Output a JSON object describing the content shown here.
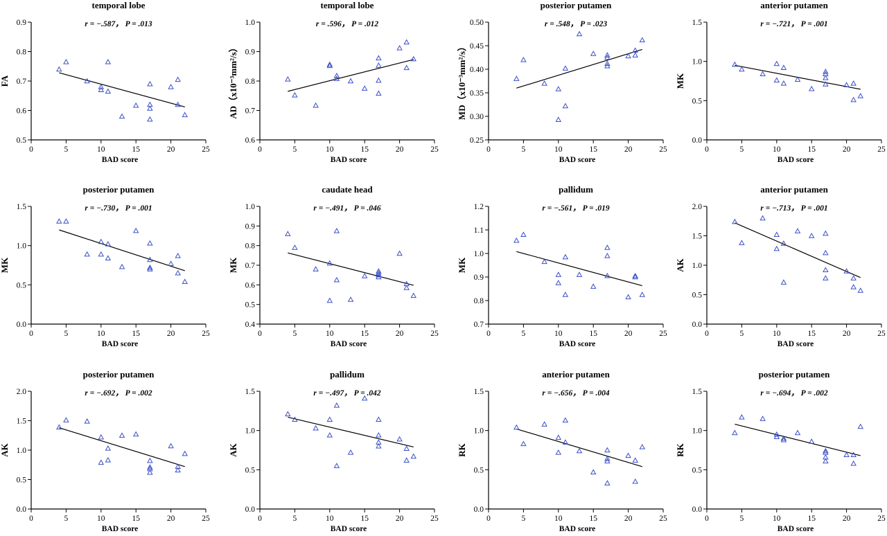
{
  "chart_data": [
    {
      "type": "scatter",
      "title": "temporal lobe",
      "annotation": {
        "r": "r = −.587，",
        "p": "P = .013"
      },
      "xlabel": "BAD score",
      "ylabel": "FA",
      "xlim": [
        0,
        25
      ],
      "ylim": [
        0.5,
        0.9
      ],
      "xticks": [
        "0",
        "5",
        "10",
        "15",
        "20",
        "25"
      ],
      "yticks": [
        "0.5",
        "0.6",
        "0.7",
        "0.8",
        "0.9"
      ],
      "points": [
        [
          4,
          0.74
        ],
        [
          5,
          0.765
        ],
        [
          8,
          0.7
        ],
        [
          10,
          0.68
        ],
        [
          10,
          0.67
        ],
        [
          11,
          0.765
        ],
        [
          11,
          0.665
        ],
        [
          13,
          0.58
        ],
        [
          15,
          0.617
        ],
        [
          17,
          0.69
        ],
        [
          17,
          0.62
        ],
        [
          17,
          0.607
        ],
        [
          17,
          0.57
        ],
        [
          20,
          0.68
        ],
        [
          21,
          0.705
        ],
        [
          21,
          0.62
        ],
        [
          22,
          0.585
        ]
      ],
      "fit": [
        [
          4,
          0.728
        ],
        [
          22,
          0.612
        ]
      ]
    },
    {
      "type": "scatter",
      "title": "temporal lobe",
      "annotation": {
        "r": "r = .596，",
        "p": "P = .012"
      },
      "xlabel": "BAD score",
      "ylabel": "AD（x10⁻³mm²/s）",
      "xlim": [
        0,
        25
      ],
      "ylim": [
        0.6,
        1.0
      ],
      "xticks": [
        "0",
        "5",
        "10",
        "15",
        "20",
        "25"
      ],
      "yticks": [
        "0.6",
        "0.7",
        "0.8",
        "0.9",
        "1.0"
      ],
      "points": [
        [
          4,
          0.806
        ],
        [
          5,
          0.752
        ],
        [
          8,
          0.717
        ],
        [
          10,
          0.856
        ],
        [
          10,
          0.852
        ],
        [
          11,
          0.818
        ],
        [
          11,
          0.808
        ],
        [
          13,
          0.8
        ],
        [
          15,
          0.775
        ],
        [
          17,
          0.878
        ],
        [
          17,
          0.853
        ],
        [
          17,
          0.802
        ],
        [
          17,
          0.758
        ],
        [
          20,
          0.912
        ],
        [
          21,
          0.932
        ],
        [
          21,
          0.845
        ],
        [
          22,
          0.875
        ]
      ],
      "fit": [
        [
          4,
          0.765
        ],
        [
          22,
          0.873
        ]
      ]
    },
    {
      "type": "scatter",
      "title": "posterior putamen",
      "annotation": {
        "r": "r = .548，",
        "p": "P = .023"
      },
      "xlabel": "BAD score",
      "ylabel": "MD（x10⁻³mm²/s）",
      "xlim": [
        0,
        25
      ],
      "ylim": [
        0.25,
        0.5
      ],
      "xticks": [
        "0",
        "5",
        "10",
        "15",
        "20",
        "25"
      ],
      "yticks": [
        "0.25",
        "0.30",
        "0.35",
        "0.40",
        "0.45",
        "0.50"
      ],
      "points": [
        [
          4,
          0.38
        ],
        [
          5,
          0.42
        ],
        [
          8,
          0.37
        ],
        [
          10,
          0.358
        ],
        [
          10,
          0.293
        ],
        [
          11,
          0.402
        ],
        [
          11,
          0.322
        ],
        [
          13,
          0.475
        ],
        [
          15,
          0.433
        ],
        [
          17,
          0.43
        ],
        [
          17,
          0.425
        ],
        [
          17,
          0.412
        ],
        [
          17,
          0.407
        ],
        [
          20,
          0.428
        ],
        [
          21,
          0.44
        ],
        [
          21,
          0.43
        ],
        [
          22,
          0.462
        ]
      ],
      "fit": [
        [
          4,
          0.36
        ],
        [
          22,
          0.442
        ]
      ]
    },
    {
      "type": "scatter",
      "title": "anterior putamen",
      "annotation": {
        "r": "r = −.721，",
        "p": "P = .001"
      },
      "xlabel": "BAD score",
      "ylabel": "MK",
      "xlim": [
        0,
        25
      ],
      "ylim": [
        0.0,
        1.5
      ],
      "xticks": [
        "0",
        "5",
        "10",
        "15",
        "20",
        "25"
      ],
      "yticks": [
        "0.0",
        "0.5",
        "1.0",
        "1.5"
      ],
      "points": [
        [
          4,
          0.96
        ],
        [
          5,
          0.9
        ],
        [
          8,
          0.84
        ],
        [
          10,
          0.97
        ],
        [
          10,
          0.76
        ],
        [
          11,
          0.92
        ],
        [
          11,
          0.72
        ],
        [
          13,
          0.77
        ],
        [
          15,
          0.65
        ],
        [
          17,
          0.87
        ],
        [
          17,
          0.84
        ],
        [
          17,
          0.79
        ],
        [
          17,
          0.71
        ],
        [
          20,
          0.7
        ],
        [
          21,
          0.72
        ],
        [
          21,
          0.51
        ],
        [
          22,
          0.56
        ]
      ],
      "fit": [
        [
          4,
          0.95
        ],
        [
          22,
          0.645
        ]
      ]
    },
    {
      "type": "scatter",
      "title": "posterior putamen",
      "annotation": {
        "r": "r = −.730，",
        "p": "P = .001"
      },
      "xlabel": "BAD score",
      "ylabel": "MK",
      "xlim": [
        0,
        25
      ],
      "ylim": [
        0.0,
        1.5
      ],
      "xticks": [
        "0",
        "5",
        "10",
        "15",
        "20",
        "25"
      ],
      "yticks": [
        "0.0",
        "0.5",
        "1.0",
        "1.5"
      ],
      "points": [
        [
          4,
          1.31
        ],
        [
          5,
          1.31
        ],
        [
          8,
          0.89
        ],
        [
          10,
          1.05
        ],
        [
          10,
          0.89
        ],
        [
          11,
          1.02
        ],
        [
          11,
          0.84
        ],
        [
          13,
          0.73
        ],
        [
          15,
          1.19
        ],
        [
          17,
          1.03
        ],
        [
          17,
          0.82
        ],
        [
          17,
          0.72
        ],
        [
          17,
          0.7
        ],
        [
          20,
          0.77
        ],
        [
          21,
          0.87
        ],
        [
          21,
          0.65
        ],
        [
          22,
          0.54
        ]
      ],
      "fit": [
        [
          4,
          1.2
        ],
        [
          22,
          0.68
        ]
      ]
    },
    {
      "type": "scatter",
      "title": "caudate head",
      "annotation": {
        "r": "r = −.491，",
        "p": "P = .046"
      },
      "xlabel": "BAD score",
      "ylabel": "MK",
      "xlim": [
        0,
        25
      ],
      "ylim": [
        0.4,
        1.0
      ],
      "xticks": [
        "0",
        "5",
        "10",
        "15",
        "20",
        "25"
      ],
      "yticks": [
        "0.4",
        "0.5",
        "0.6",
        "0.7",
        "0.8",
        "0.9",
        "1.0"
      ],
      "points": [
        [
          4,
          0.86
        ],
        [
          5,
          0.79
        ],
        [
          8,
          0.68
        ],
        [
          10,
          0.71
        ],
        [
          10,
          0.52
        ],
        [
          11,
          0.875
        ],
        [
          11,
          0.625
        ],
        [
          13,
          0.525
        ],
        [
          15,
          0.645
        ],
        [
          17,
          0.67
        ],
        [
          17,
          0.66
        ],
        [
          17,
          0.65
        ],
        [
          17,
          0.64
        ],
        [
          20,
          0.76
        ],
        [
          21,
          0.605
        ],
        [
          21,
          0.585
        ],
        [
          22,
          0.545
        ]
      ],
      "fit": [
        [
          4,
          0.763
        ],
        [
          22,
          0.598
        ]
      ]
    },
    {
      "type": "scatter",
      "title": "pallidum",
      "annotation": {
        "r": "r = −.561，",
        "p": "P = .019"
      },
      "xlabel": "BAD score",
      "ylabel": "MK",
      "xlim": [
        0,
        25
      ],
      "ylim": [
        0.7,
        1.2
      ],
      "xticks": [
        "0",
        "5",
        "10",
        "15",
        "20",
        "25"
      ],
      "yticks": [
        "0.7",
        "0.8",
        "0.9",
        "1.0",
        "1.1",
        "1.2"
      ],
      "points": [
        [
          4,
          1.055
        ],
        [
          5,
          1.08
        ],
        [
          8,
          0.965
        ],
        [
          10,
          0.91
        ],
        [
          10,
          0.875
        ],
        [
          11,
          0.985
        ],
        [
          11,
          0.825
        ],
        [
          13,
          0.91
        ],
        [
          15,
          0.86
        ],
        [
          17,
          1.025
        ],
        [
          17,
          0.99
        ],
        [
          17,
          0.905
        ],
        [
          20,
          0.815
        ],
        [
          21,
          0.905
        ],
        [
          21,
          0.9
        ],
        [
          22,
          0.825
        ]
      ],
      "fit": [
        [
          4,
          1.008
        ],
        [
          22,
          0.863
        ]
      ]
    },
    {
      "type": "scatter",
      "title": "anterior putamen",
      "annotation": {
        "r": "r = −.713，",
        "p": "P = .001"
      },
      "xlabel": "BAD score",
      "ylabel": "AK",
      "xlim": [
        0,
        25
      ],
      "ylim": [
        0.0,
        2.0
      ],
      "xticks": [
        "0",
        "5",
        "10",
        "15",
        "20",
        "25"
      ],
      "yticks": [
        "0.0",
        "0.5",
        "1.0",
        "1.5",
        "2.0"
      ],
      "points": [
        [
          4,
          1.74
        ],
        [
          5,
          1.38
        ],
        [
          8,
          1.8
        ],
        [
          10,
          1.52
        ],
        [
          10,
          1.28
        ],
        [
          11,
          1.37
        ],
        [
          11,
          0.71
        ],
        [
          13,
          1.58
        ],
        [
          15,
          1.5
        ],
        [
          17,
          1.54
        ],
        [
          17,
          1.21
        ],
        [
          17,
          0.92
        ],
        [
          17,
          0.78
        ],
        [
          20,
          0.9
        ],
        [
          21,
          0.78
        ],
        [
          21,
          0.63
        ],
        [
          22,
          0.57
        ]
      ],
      "fit": [
        [
          4,
          1.72
        ],
        [
          22,
          0.79
        ]
      ]
    },
    {
      "type": "scatter",
      "title": "posterior putamen",
      "annotation": {
        "r": "r = −.692，",
        "p": "P = .002"
      },
      "xlabel": "BAD score",
      "ylabel": "AK",
      "xlim": [
        0,
        25
      ],
      "ylim": [
        0.0,
        2.0
      ],
      "xticks": [
        "0",
        "5",
        "10",
        "15",
        "20",
        "25"
      ],
      "yticks": [
        "0.0",
        "0.5",
        "1.0",
        "1.5",
        "2.0"
      ],
      "points": [
        [
          4,
          1.39
        ],
        [
          5,
          1.51
        ],
        [
          8,
          1.49
        ],
        [
          10,
          1.22
        ],
        [
          10,
          0.79
        ],
        [
          11,
          1.03
        ],
        [
          11,
          0.83
        ],
        [
          13,
          1.25
        ],
        [
          15,
          1.27
        ],
        [
          17,
          0.82
        ],
        [
          17,
          0.71
        ],
        [
          17,
          0.68
        ],
        [
          17,
          0.62
        ],
        [
          20,
          1.07
        ],
        [
          21,
          0.72
        ],
        [
          21,
          0.66
        ],
        [
          22,
          0.94
        ]
      ],
      "fit": [
        [
          4,
          1.38
        ],
        [
          22,
          0.72
        ]
      ]
    },
    {
      "type": "scatter",
      "title": "pallidum",
      "annotation": {
        "r": "r = −.497，",
        "p": "P = .042"
      },
      "xlabel": "BAD score",
      "ylabel": "AK",
      "xlim": [
        0,
        25
      ],
      "ylim": [
        0.0,
        1.5
      ],
      "xticks": [
        "0",
        "5",
        "10",
        "15",
        "20",
        "25"
      ],
      "yticks": [
        "0.0",
        "0.5",
        "1.0",
        "1.5"
      ],
      "points": [
        [
          4,
          1.21
        ],
        [
          5,
          1.14
        ],
        [
          8,
          1.03
        ],
        [
          10,
          1.14
        ],
        [
          10,
          0.94
        ],
        [
          11,
          1.32
        ],
        [
          11,
          0.55
        ],
        [
          13,
          0.72
        ],
        [
          15,
          1.41
        ],
        [
          17,
          1.14
        ],
        [
          17,
          0.94
        ],
        [
          17,
          0.85
        ],
        [
          17,
          0.8
        ],
        [
          20,
          0.89
        ],
        [
          21,
          0.77
        ],
        [
          21,
          0.62
        ],
        [
          22,
          0.67
        ]
      ],
      "fit": [
        [
          4,
          1.17
        ],
        [
          22,
          0.79
        ]
      ]
    },
    {
      "type": "scatter",
      "title": "anterior putamen",
      "annotation": {
        "r": "r = −.656，",
        "p": "P = .004"
      },
      "xlabel": "BAD score",
      "ylabel": "RK",
      "xlim": [
        0,
        25
      ],
      "ylim": [
        0.0,
        1.5
      ],
      "xticks": [
        "0",
        "5",
        "10",
        "15",
        "20",
        "25"
      ],
      "yticks": [
        "0.0",
        "0.5",
        "1.0",
        "1.5"
      ],
      "points": [
        [
          4,
          1.04
        ],
        [
          5,
          0.83
        ],
        [
          8,
          1.08
        ],
        [
          10,
          0.91
        ],
        [
          10,
          0.72
        ],
        [
          11,
          1.13
        ],
        [
          11,
          0.85
        ],
        [
          13,
          0.74
        ],
        [
          15,
          0.47
        ],
        [
          17,
          0.75
        ],
        [
          17,
          0.64
        ],
        [
          17,
          0.61
        ],
        [
          17,
          0.33
        ],
        [
          20,
          0.68
        ],
        [
          21,
          0.62
        ],
        [
          21,
          0.35
        ],
        [
          22,
          0.79
        ]
      ],
      "fit": [
        [
          4,
          1.02
        ],
        [
          22,
          0.54
        ]
      ]
    },
    {
      "type": "scatter",
      "title": "posterior putamen",
      "annotation": {
        "r": "r = −.694，",
        "p": "P = .002"
      },
      "xlabel": "BAD score",
      "ylabel": "RK",
      "xlim": [
        0,
        25
      ],
      "ylim": [
        0.0,
        1.5
      ],
      "xticks": [
        "0",
        "5",
        "10",
        "15",
        "20",
        "25"
      ],
      "yticks": [
        "0.0",
        "0.5",
        "1.0",
        "1.5"
      ],
      "points": [
        [
          4,
          0.97
        ],
        [
          5,
          1.17
        ],
        [
          8,
          1.15
        ],
        [
          10,
          0.95
        ],
        [
          10,
          0.92
        ],
        [
          11,
          0.9
        ],
        [
          11,
          0.88
        ],
        [
          13,
          0.97
        ],
        [
          15,
          0.86
        ],
        [
          17,
          0.74
        ],
        [
          17,
          0.72
        ],
        [
          17,
          0.66
        ],
        [
          17,
          0.61
        ],
        [
          20,
          0.69
        ],
        [
          21,
          0.69
        ],
        [
          21,
          0.58
        ],
        [
          22,
          1.05
        ]
      ],
      "fit": [
        [
          4,
          1.08
        ],
        [
          22,
          0.68
        ]
      ]
    }
  ],
  "marker_color": "#3a4fc8",
  "line_color": "#000000"
}
